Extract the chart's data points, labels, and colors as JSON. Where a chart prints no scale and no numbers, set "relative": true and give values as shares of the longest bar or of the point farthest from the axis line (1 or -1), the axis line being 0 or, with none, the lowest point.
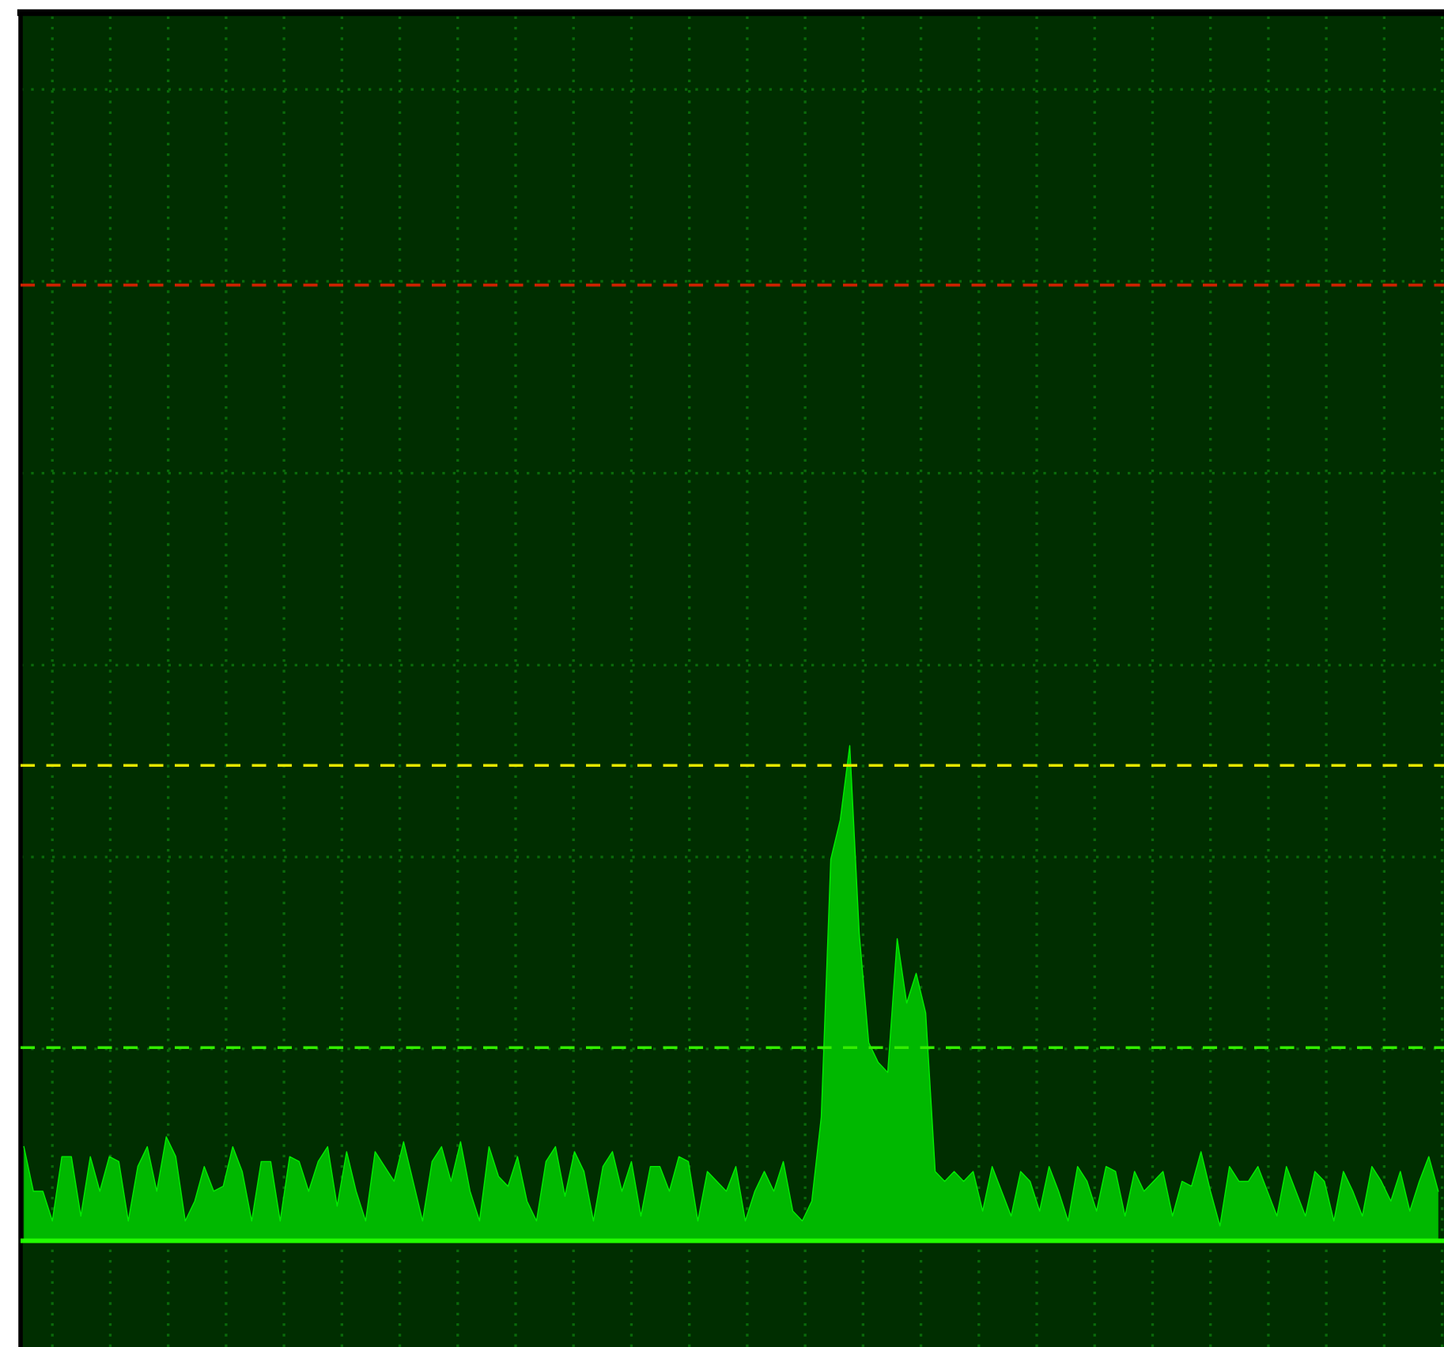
{
  "chart_data": {
    "type": "area",
    "relative": true,
    "grid": true,
    "line_style": "solid",
    "categories": [
      null,
      null,
      null,
      null,
      null,
      null,
      null,
      null,
      null,
      null,
      null,
      null,
      null,
      null,
      null,
      null,
      null,
      null,
      null,
      null,
      null,
      null,
      null,
      null,
      null,
      null,
      null,
      null,
      null,
      null,
      null,
      null,
      null,
      null,
      null,
      null,
      null,
      null,
      null,
      null,
      null,
      null,
      null,
      null,
      null,
      null,
      null,
      null,
      null,
      null,
      null,
      null,
      null,
      null,
      null,
      null,
      null,
      null,
      null,
      null,
      null,
      null,
      null,
      null,
      null,
      null,
      null,
      null,
      null,
      null,
      null,
      null,
      null,
      null,
      null,
      null,
      null,
      null,
      null,
      null,
      null,
      null,
      null,
      null,
      null,
      null,
      null,
      null,
      null,
      null,
      null,
      null,
      null,
      null,
      null,
      null,
      null,
      null,
      null,
      null,
      null,
      null,
      null,
      null,
      null,
      null,
      null,
      null,
      null,
      null,
      null,
      null,
      null,
      null,
      null,
      null,
      null,
      null,
      null,
      null,
      null,
      null,
      null,
      null,
      null,
      null,
      null,
      null,
      null,
      null,
      null,
      null,
      null,
      null,
      null,
      null,
      null,
      null,
      null,
      null,
      null,
      null,
      null,
      null,
      null,
      null,
      null,
      null,
      null,
      null
    ],
    "series": [
      {
        "color": "#00b800",
        "values": [
          0.19,
          0.1,
          0.1,
          0.04,
          0.17,
          0.17,
          0.05,
          0.17,
          0.1,
          0.17,
          0.16,
          0.04,
          0.15,
          0.19,
          0.1,
          0.21,
          0.17,
          0.04,
          0.08,
          0.15,
          0.1,
          0.11,
          0.19,
          0.14,
          0.04,
          0.16,
          0.16,
          0.04,
          0.17,
          0.16,
          0.1,
          0.16,
          0.19,
          0.07,
          0.18,
          0.1,
          0.04,
          0.18,
          0.15,
          0.12,
          0.2,
          0.12,
          0.04,
          0.16,
          0.19,
          0.12,
          0.2,
          0.1,
          0.04,
          0.19,
          0.13,
          0.11,
          0.17,
          0.08,
          0.04,
          0.16,
          0.19,
          0.09,
          0.18,
          0.14,
          0.04,
          0.15,
          0.18,
          0.1,
          0.16,
          0.05,
          0.15,
          0.15,
          0.1,
          0.17,
          0.16,
          0.04,
          0.14,
          0.12,
          0.1,
          0.15,
          0.04,
          0.1,
          0.14,
          0.1,
          0.16,
          0.06,
          0.04,
          0.08,
          0.25,
          0.77,
          0.85,
          1.0,
          0.62,
          0.4,
          0.36,
          0.34,
          0.61,
          0.48,
          0.54,
          0.46,
          0.14,
          0.12,
          0.14,
          0.12,
          0.14,
          0.06,
          0.15,
          0.1,
          0.05,
          0.14,
          0.12,
          0.06,
          0.15,
          0.1,
          0.04,
          0.15,
          0.12,
          0.06,
          0.15,
          0.14,
          0.05,
          0.14,
          0.1,
          0.12,
          0.14,
          0.05,
          0.12,
          0.11,
          0.18,
          0.1,
          0.03,
          0.15,
          0.12,
          0.12,
          0.15,
          0.1,
          0.05,
          0.15,
          0.1,
          0.05,
          0.14,
          0.12,
          0.04,
          0.14,
          0.1,
          0.05,
          0.15,
          0.12,
          0.08,
          0.14,
          0.06,
          0.12,
          0.17,
          0.1
        ]
      }
    ],
    "ref_lines": [
      {
        "axis": "y",
        "value": 1.93,
        "color": "#cc2200",
        "line_style": "dashed"
      },
      {
        "axis": "y",
        "value": 0.96,
        "color": "#e6e600",
        "line_style": "dashed"
      },
      {
        "axis": "y",
        "value": 0.39,
        "color": "#33ee00",
        "line_style": "dashed"
      }
    ]
  }
}
